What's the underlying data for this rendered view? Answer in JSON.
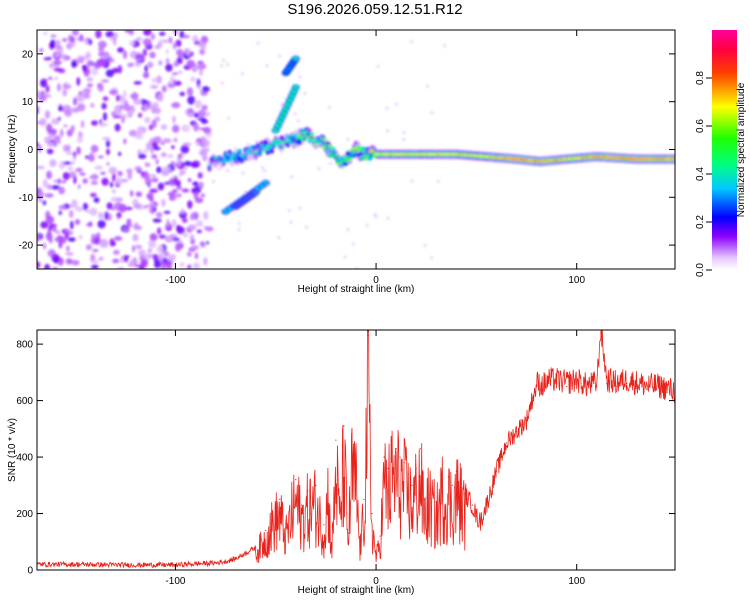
{
  "title": "S196.2026.059.12.51.R12",
  "chart_data": [
    {
      "type": "heatmap",
      "name": "spectrogram",
      "xlabel": "Height of straight line (km)",
      "ylabel": "Frequency (Hz)",
      "xlim": [
        -169,
        149
      ],
      "ylim": [
        -25,
        25
      ],
      "xticks": [
        -100,
        0,
        100
      ],
      "yticks": [
        -20,
        -10,
        0,
        10,
        20
      ],
      "colorbar": {
        "label": "Normalized spectral amplitude",
        "range": [
          0,
          1
        ],
        "ticks": [
          0.0,
          0.2,
          0.4,
          0.6,
          0.8
        ],
        "tick_labels": [
          "0.0",
          "0.2",
          "0.4",
          "0.6",
          "0.8"
        ],
        "colors": [
          "#ffffff",
          "#8c00ff",
          "#0000ff",
          "#00ffff",
          "#00ff00",
          "#ffff00",
          "#ff0000",
          "#ff00ff"
        ]
      },
      "noise_region_x": [
        -169,
        -83
      ],
      "ridge": [
        {
          "x": -83,
          "f": -3.0,
          "a": 0.3
        },
        {
          "x": -75,
          "f": -2.0,
          "a": 0.4
        },
        {
          "x": -65,
          "f": -1.0,
          "a": 0.35
        },
        {
          "x": -55,
          "f": 0.5,
          "a": 0.4
        },
        {
          "x": -45,
          "f": 1.5,
          "a": 0.4
        },
        {
          "x": -35,
          "f": 3.0,
          "a": 0.45
        },
        {
          "x": -25,
          "f": 1.0,
          "a": 0.55
        },
        {
          "x": -17,
          "f": -3.0,
          "a": 0.5
        },
        {
          "x": -10,
          "f": 0.0,
          "a": 0.55
        },
        {
          "x": -5,
          "f": -1.0,
          "a": 0.6
        },
        {
          "x": 0,
          "f": -1.0,
          "a": 0.7
        },
        {
          "x": 10,
          "f": -1.0,
          "a": 0.7
        },
        {
          "x": 25,
          "f": -1.0,
          "a": 0.7
        },
        {
          "x": 40,
          "f": -1.0,
          "a": 0.72
        },
        {
          "x": 55,
          "f": -1.5,
          "a": 0.7
        },
        {
          "x": 70,
          "f": -2.0,
          "a": 0.85
        },
        {
          "x": 82,
          "f": -2.5,
          "a": 0.8
        },
        {
          "x": 95,
          "f": -2.0,
          "a": 0.75
        },
        {
          "x": 110,
          "f": -1.5,
          "a": 0.8
        },
        {
          "x": 130,
          "f": -2.0,
          "a": 0.85
        },
        {
          "x": 149,
          "f": -2.0,
          "a": 0.8
        }
      ],
      "side_branches": [
        {
          "x0": -45,
          "f0": 16,
          "x1": -40,
          "f1": 19,
          "a": 0.4
        },
        {
          "x0": -50,
          "f0": 4,
          "x1": -40,
          "f1": 13,
          "a": 0.45
        },
        {
          "x0": -75,
          "f0": -13,
          "x1": -55,
          "f1": -7,
          "a": 0.35
        },
        {
          "x0": -70,
          "f0": -12,
          "x1": -60,
          "f1": -9,
          "a": 0.3
        }
      ]
    },
    {
      "type": "line",
      "name": "snr",
      "xlabel": "Height of straight line (km)",
      "ylabel": "SNR (10 * v/v)",
      "xlim": [
        -169,
        149
      ],
      "ylim": [
        0,
        850
      ],
      "xticks": [
        -100,
        0,
        100
      ],
      "yticks": [
        0,
        200,
        400,
        600,
        800
      ],
      "color": "#e8231c",
      "series": [
        {
          "name": "SNR",
          "x": [
            -169,
            -150,
            -125,
            -100,
            -90,
            -80,
            -75,
            -70,
            -65,
            -60,
            -55,
            -52,
            -48,
            -45,
            -40,
            -37,
            -34,
            -30,
            -26,
            -24,
            -22,
            -20,
            -18,
            -16,
            -14,
            -12,
            -10,
            -8,
            -6,
            -4,
            -2,
            0,
            2,
            4,
            6,
            8,
            10,
            12,
            14,
            16,
            18,
            20,
            22,
            24,
            26,
            28,
            30,
            33,
            36,
            38,
            40,
            42,
            44,
            46,
            48,
            50,
            52,
            55,
            58,
            60,
            65,
            70,
            75,
            78,
            80,
            83,
            86,
            90,
            95,
            100,
            105,
            110,
            112,
            115,
            120,
            125,
            130,
            135,
            140,
            145,
            149
          ],
          "y": [
            20,
            20,
            18,
            18,
            22,
            25,
            30,
            40,
            60,
            80,
            140,
            200,
            250,
            150,
            320,
            230,
            280,
            300,
            160,
            340,
            90,
            460,
            230,
            510,
            130,
            440,
            380,
            90,
            250,
            830,
            200,
            60,
            120,
            400,
            360,
            420,
            430,
            400,
            380,
            340,
            300,
            360,
            430,
            250,
            300,
            280,
            240,
            340,
            330,
            300,
            350,
            320,
            270,
            250,
            230,
            190,
            170,
            230,
            300,
            350,
            450,
            490,
            530,
            610,
            650,
            640,
            660,
            660,
            650,
            660,
            640,
            650,
            840,
            660,
            650,
            660,
            650,
            640,
            640,
            630,
            620
          ]
        }
      ]
    }
  ]
}
